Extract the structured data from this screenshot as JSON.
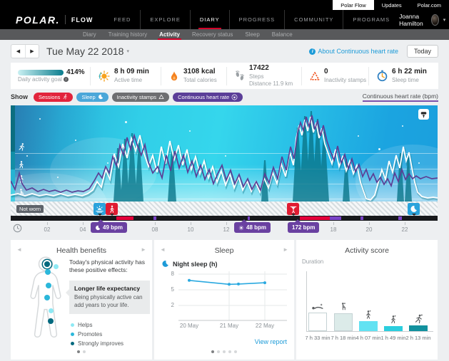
{
  "topbar": {
    "tabs": [
      {
        "label": "Polar Flow",
        "active": true
      },
      {
        "label": "Updates",
        "active": false
      },
      {
        "label": "Polar.com",
        "active": false
      }
    ]
  },
  "icons": {
    "prev": "◀",
    "next": "▶",
    "caret_down": "▾",
    "star": "☆",
    "card_prev": "◄",
    "card_next": "►"
  },
  "nav": {
    "logo": "POLAR.",
    "product": "FLOW",
    "items": [
      "FEED",
      "EXPLORE",
      "DIARY",
      "PROGRESS",
      "COMMUNITY",
      "PROGRAMS"
    ],
    "active": "DIARY",
    "user_name": "Joanna Hamilton"
  },
  "subnav": {
    "items": [
      "Diary",
      "Training history",
      "Activity",
      "Recovery status",
      "Sleep",
      "Balance"
    ],
    "active": "Activity"
  },
  "datebar": {
    "date": "Tue May 22 2018",
    "about": "About Continuous heart rate",
    "today": "Today"
  },
  "stats": {
    "goal": {
      "percent": "414%",
      "label": "Daily activity goal"
    },
    "active_time": {
      "value": "8 h 09 min",
      "label": "Active time"
    },
    "calories": {
      "value": "3108 kcal",
      "label": "Total calories"
    },
    "steps": {
      "value": "17422",
      "label": "Steps",
      "distance_line": "Distance 11.9 km"
    },
    "inactivity": {
      "value": "0",
      "label": "Inactivity stamps"
    },
    "sleep": {
      "value": "6 h 22 min",
      "label": "Sleep time"
    }
  },
  "show": {
    "label": "Show",
    "pills": [
      {
        "label": "Sessions",
        "color": "#e2243c",
        "icon": "runner"
      },
      {
        "label": "Sleep",
        "color": "#4ba7d9",
        "icon": "moon"
      },
      {
        "label": "Inactivity stamps",
        "color": "#6d6e71",
        "icon": "triangle"
      },
      {
        "label": "Continuous heart rate",
        "color": "#5b3e98",
        "icon": "heart"
      }
    ],
    "axis_label": "Continuous heart rate (bpm)",
    "axis_color": "#7b52ab"
  },
  "chart": {
    "not_worn_label": "Not worn",
    "hours": [
      "02",
      "04",
      "06",
      "08",
      "10",
      "12",
      "14",
      "16",
      "18",
      "20",
      "22"
    ],
    "hr_badges": [
      {
        "icon": "moon",
        "value": "49 bpm"
      },
      {
        "icon": "sun",
        "value": "48 bpm"
      },
      {
        "icon": "",
        "value": "172 bpm"
      }
    ],
    "timeline": {
      "red": [
        [
          148,
          24
        ],
        [
          405,
          42
        ]
      ],
      "purple": [
        [
          200,
          4
        ],
        [
          332,
          3
        ],
        [
          447,
          16
        ],
        [
          490,
          4
        ],
        [
          543,
          5
        ]
      ]
    },
    "series": {
      "hr_color": "#5b3f95",
      "activity_color": "#ffffff",
      "session_color": "#0a768a",
      "hr": [
        [
          0,
          106
        ],
        [
          6,
          118
        ],
        [
          12,
          95
        ],
        [
          16,
          110
        ],
        [
          22,
          119
        ],
        [
          30,
          116
        ],
        [
          38,
          121
        ],
        [
          46,
          118
        ],
        [
          54,
          121
        ],
        [
          62,
          119
        ],
        [
          70,
          122
        ],
        [
          78,
          119
        ],
        [
          86,
          122
        ],
        [
          94,
          120
        ],
        [
          102,
          121
        ],
        [
          110,
          117
        ],
        [
          117,
          106
        ],
        [
          123,
          95
        ],
        [
          128,
          102
        ],
        [
          133,
          86
        ],
        [
          138,
          95
        ],
        [
          143,
          72
        ],
        [
          148,
          85
        ],
        [
          153,
          56
        ],
        [
          158,
          70
        ],
        [
          163,
          45
        ],
        [
          168,
          62
        ],
        [
          173,
          42
        ],
        [
          178,
          58
        ],
        [
          183,
          70
        ],
        [
          188,
          55
        ],
        [
          193,
          80
        ],
        [
          199,
          95
        ],
        [
          206,
          86
        ],
        [
          212,
          102
        ],
        [
          218,
          70
        ],
        [
          224,
          92
        ],
        [
          230,
          64
        ],
        [
          236,
          88
        ],
        [
          242,
          70
        ],
        [
          248,
          94
        ],
        [
          254,
          78
        ],
        [
          260,
          100
        ],
        [
          266,
          84
        ],
        [
          272,
          104
        ],
        [
          278,
          90
        ],
        [
          284,
          110
        ],
        [
          290,
          96
        ],
        [
          296,
          84
        ],
        [
          302,
          105
        ],
        [
          308,
          91
        ],
        [
          314,
          110
        ],
        [
          320,
          97
        ],
        [
          326,
          114
        ],
        [
          332,
          103
        ],
        [
          338,
          118
        ],
        [
          344,
          107
        ],
        [
          350,
          119
        ],
        [
          356,
          96
        ],
        [
          362,
          109
        ],
        [
          368,
          87
        ],
        [
          374,
          103
        ],
        [
          380,
          72
        ],
        [
          386,
          91
        ],
        [
          392,
          58
        ],
        [
          397,
          75
        ],
        [
          402,
          38
        ],
        [
          406,
          24
        ],
        [
          410,
          35
        ],
        [
          414,
          16
        ],
        [
          418,
          30
        ],
        [
          422,
          14
        ],
        [
          426,
          34
        ],
        [
          430,
          21
        ],
        [
          434,
          43
        ],
        [
          438,
          28
        ],
        [
          443,
          50
        ],
        [
          448,
          65
        ],
        [
          453,
          77
        ],
        [
          458,
          57
        ],
        [
          463,
          81
        ],
        [
          468,
          69
        ],
        [
          473,
          89
        ],
        [
          478,
          75
        ],
        [
          483,
          93
        ],
        [
          488,
          83
        ],
        [
          493,
          100
        ],
        [
          498,
          90
        ],
        [
          503,
          105
        ],
        [
          508,
          96
        ],
        [
          513,
          108
        ],
        [
          518,
          101
        ],
        [
          523,
          111
        ],
        [
          528,
          103
        ],
        [
          533,
          113
        ],
        [
          538,
          95
        ],
        [
          543,
          107
        ],
        [
          548,
          90
        ],
        [
          553,
          104
        ],
        [
          558,
          96
        ],
        [
          563,
          103
        ],
        [
          568,
          99
        ],
        [
          574,
          103
        ],
        [
          582,
          100
        ],
        [
          590,
          103
        ],
        [
          598,
          102
        ]
      ],
      "activity": [
        [
          0,
          126
        ],
        [
          10,
          124
        ],
        [
          20,
          127
        ],
        [
          30,
          124
        ],
        [
          40,
          127
        ],
        [
          50,
          125
        ],
        [
          60,
          127
        ],
        [
          70,
          124
        ],
        [
          80,
          127
        ],
        [
          90,
          125
        ],
        [
          100,
          127
        ],
        [
          108,
          124
        ],
        [
          115,
          119
        ],
        [
          121,
          107
        ],
        [
          127,
          115
        ],
        [
          133,
          90
        ],
        [
          139,
          104
        ],
        [
          145,
          68
        ],
        [
          151,
          86
        ],
        [
          157,
          54
        ],
        [
          163,
          74
        ],
        [
          169,
          46
        ],
        [
          175,
          64
        ],
        [
          181,
          42
        ],
        [
          187,
          68
        ],
        [
          193,
          86
        ],
        [
          199,
          70
        ],
        [
          205,
          94
        ],
        [
          211,
          58
        ],
        [
          217,
          82
        ],
        [
          223,
          50
        ],
        [
          229,
          76
        ],
        [
          235,
          56
        ],
        [
          241,
          84
        ],
        [
          247,
          62
        ],
        [
          253,
          90
        ],
        [
          259,
          72
        ],
        [
          265,
          96
        ],
        [
          271,
          78
        ],
        [
          277,
          102
        ],
        [
          283,
          86
        ],
        [
          289,
          108
        ],
        [
          295,
          92
        ],
        [
          301,
          112
        ],
        [
          307,
          96
        ],
        [
          313,
          116
        ],
        [
          319,
          100
        ],
        [
          325,
          119
        ],
        [
          331,
          106
        ],
        [
          337,
          121
        ],
        [
          343,
          108
        ],
        [
          349,
          122
        ],
        [
          355,
          102
        ],
        [
          361,
          116
        ],
        [
          367,
          94
        ],
        [
          373,
          110
        ],
        [
          379,
          82
        ],
        [
          385,
          100
        ],
        [
          391,
          66
        ],
        [
          396,
          84
        ],
        [
          400,
          46
        ],
        [
          404,
          28
        ],
        [
          408,
          42
        ],
        [
          412,
          20
        ],
        [
          416,
          36
        ],
        [
          420,
          16
        ],
        [
          424,
          38
        ],
        [
          428,
          24
        ],
        [
          432,
          46
        ],
        [
          436,
          32
        ],
        [
          440,
          54
        ],
        [
          445,
          68
        ],
        [
          450,
          82
        ],
        [
          455,
          62
        ],
        [
          460,
          86
        ],
        [
          465,
          72
        ],
        [
          470,
          92
        ],
        [
          475,
          78
        ],
        [
          480,
          96
        ],
        [
          485,
          84
        ],
        [
          490,
          108
        ],
        [
          494,
          120
        ],
        [
          498,
          131
        ],
        [
          504,
          133
        ],
        [
          510,
          126
        ],
        [
          515,
          108
        ],
        [
          520,
          90
        ],
        [
          525,
          104
        ],
        [
          530,
          78
        ],
        [
          535,
          94
        ],
        [
          540,
          70
        ],
        [
          545,
          88
        ],
        [
          550,
          58
        ],
        [
          554,
          78
        ],
        [
          558,
          66
        ],
        [
          562,
          88
        ],
        [
          566,
          108
        ],
        [
          570,
          122
        ],
        [
          576,
          128
        ],
        [
          584,
          130
        ],
        [
          592,
          129
        ],
        [
          598,
          130
        ]
      ],
      "session_peaks": [
        [
          150,
          6,
          75
        ],
        [
          160,
          6,
          88
        ],
        [
          170,
          7,
          96
        ],
        [
          180,
          6,
          82
        ],
        [
          226,
          6,
          74
        ],
        [
          356,
          5,
          58
        ],
        [
          402,
          7,
          104
        ],
        [
          412,
          8,
          120
        ],
        [
          421,
          7,
          127
        ],
        [
          430,
          8,
          116
        ],
        [
          439,
          7,
          98
        ],
        [
          470,
          5,
          60
        ],
        [
          546,
          5,
          68
        ],
        [
          557,
          5,
          62
        ]
      ]
    }
  },
  "cards": {
    "health": {
      "title": "Health benefits",
      "intro": "Today's physical activity has these positive effects:",
      "callout_title": "Longer life expectancy",
      "callout_text": "Being physically active can add years to your life.",
      "legend": [
        {
          "label": "Helps",
          "color": "#8ee9f4"
        },
        {
          "label": "Promotes",
          "color": "#2bb7da"
        },
        {
          "label": "Strongly improves",
          "color": "#00697e"
        }
      ],
      "body_dots": [
        [
          47,
          30,
          2,
          true
        ],
        [
          60,
          34,
          0,
          false
        ],
        [
          48,
          41,
          1,
          false
        ],
        [
          49,
          60,
          1,
          false
        ],
        [
          47,
          77,
          1,
          false
        ],
        [
          53,
          96,
          0,
          false
        ],
        [
          52,
          110,
          2,
          false
        ]
      ]
    },
    "sleep": {
      "title": "Sleep",
      "legend_label": "Night sleep (h)",
      "yticks": [
        "8",
        "5",
        "2"
      ],
      "xlabels": [
        "20 May",
        "21 May",
        "22 May"
      ],
      "line_color": "#2aa9e0",
      "points": [
        [
          49,
          6.8
        ],
        [
          105,
          6.05
        ],
        [
          118,
          6.1
        ],
        [
          155,
          6.35
        ]
      ],
      "link": "View report"
    },
    "activity_score": {
      "title": "Activity score",
      "duration_label": "Duration",
      "bars": [
        {
          "icon": "resting",
          "label": "7 h 33 min",
          "minutes": 453,
          "color": "#ffffff",
          "border": "#c4d2d4"
        },
        {
          "icon": "sitting",
          "label": "7 h 18 min",
          "minutes": 438,
          "color": "#dcebe9",
          "border": "#c4d2d4"
        },
        {
          "icon": "standing",
          "label": "4 h 07 min",
          "minutes": 247,
          "color": "#62e2f2",
          "border": "#62e2f2"
        },
        {
          "icon": "walking",
          "label": "1 h 49 min",
          "minutes": 109,
          "color": "#2bcede",
          "border": "#2bcede"
        },
        {
          "icon": "running",
          "label": "2 h 13 min",
          "minutes": 133,
          "color": "#12919e",
          "border": "#12919e"
        }
      ]
    }
  }
}
